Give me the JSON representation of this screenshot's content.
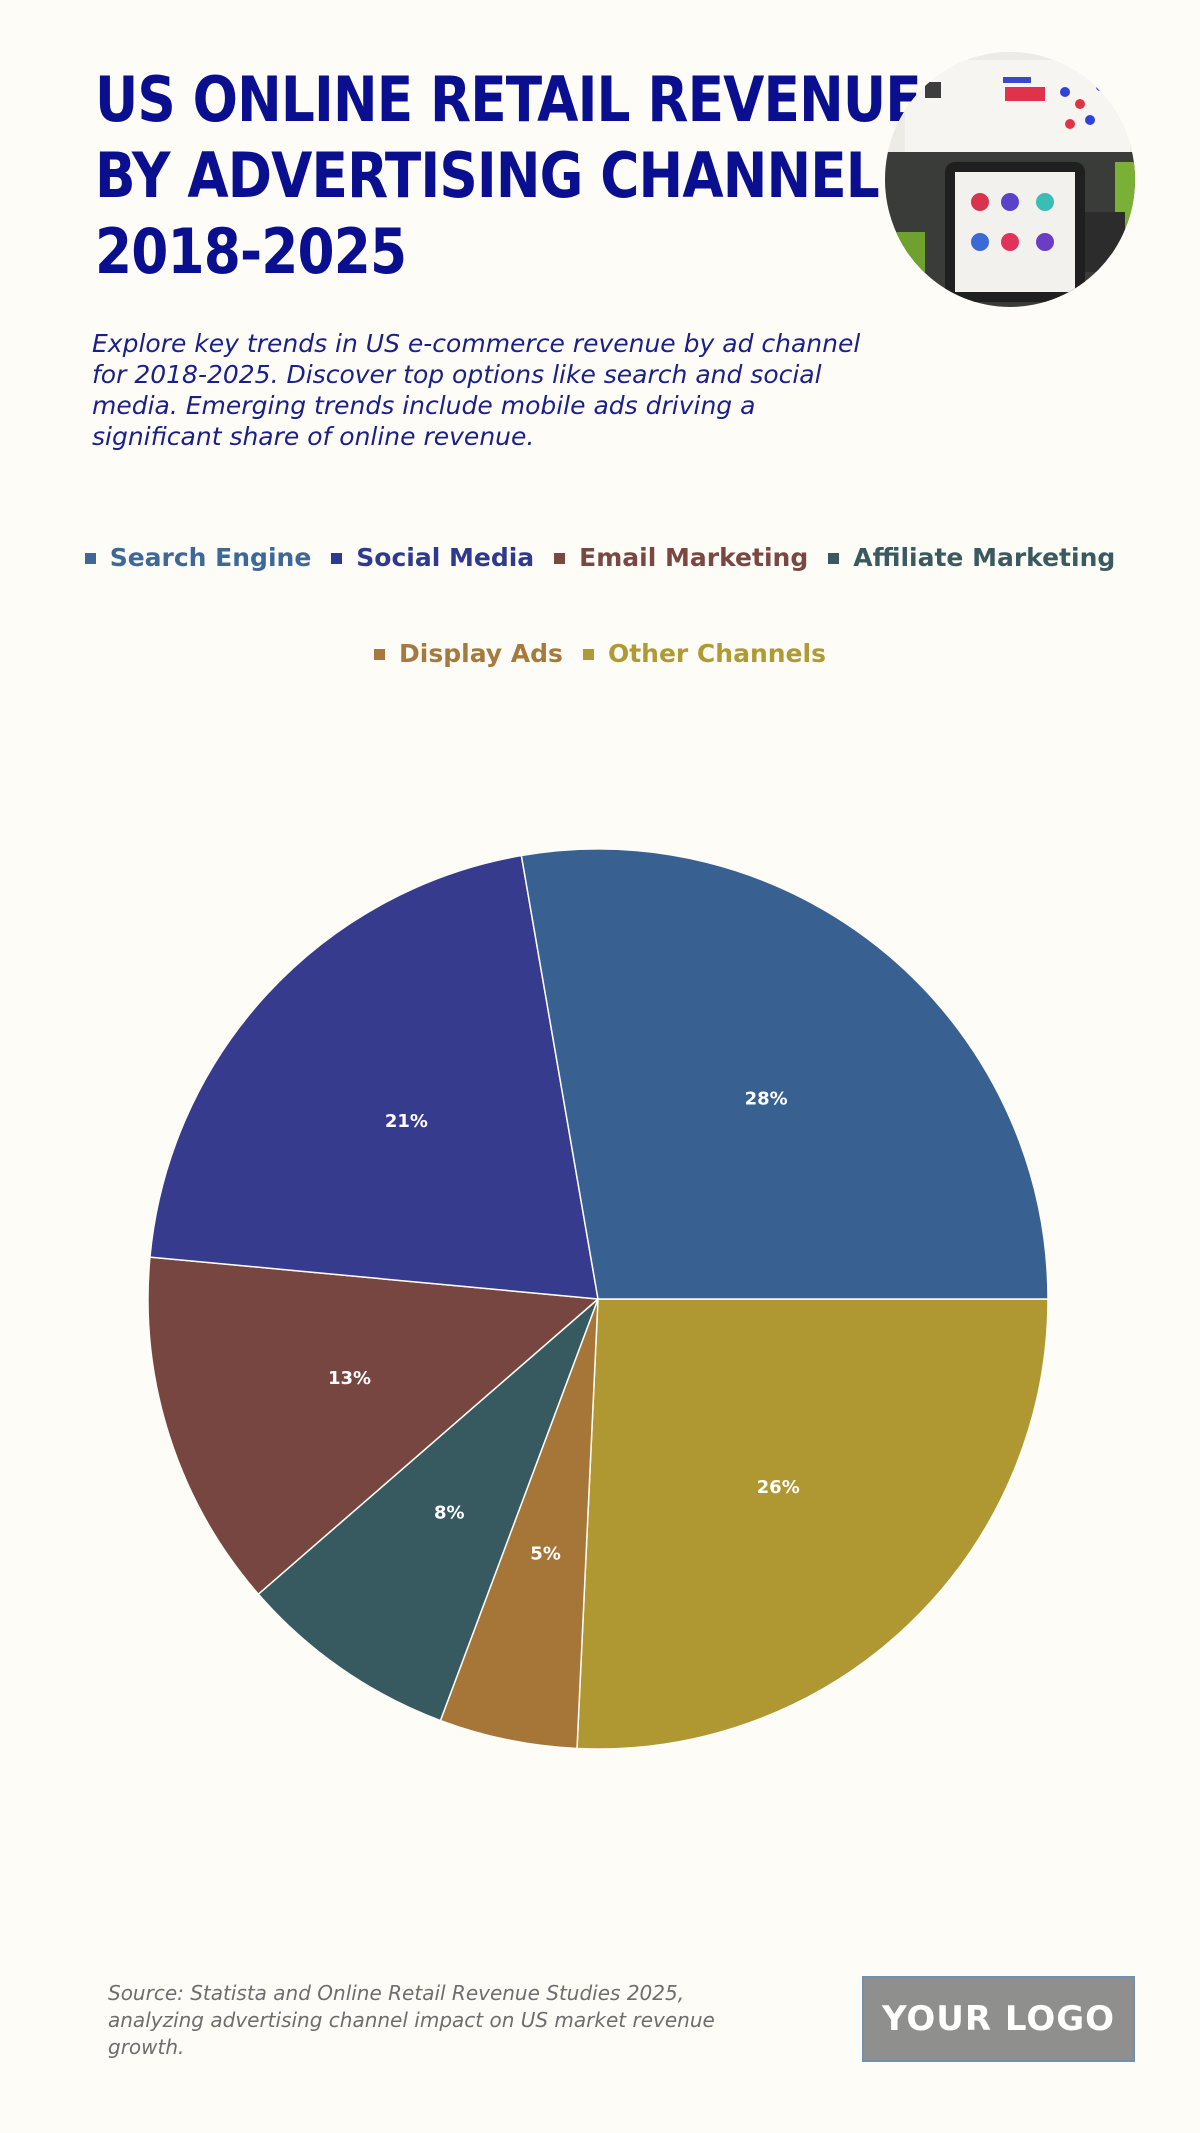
{
  "header": {
    "title_lines": [
      "US ONLINE RETAIL REVENUE",
      "BY ADVERTISING CHANNEL",
      "2018-2025"
    ],
    "subtitle": "Explore key trends in US e-commerce revenue by ad channel for 2018-2025. Discover top options like search and social media. Emerging trends include mobile ads driving a significant share of online revenue."
  },
  "chart_data": {
    "type": "pie",
    "legend_position": "top",
    "slices": [
      {
        "name": "Search Engine",
        "value": 28,
        "label": "28%",
        "color": "#386192"
      },
      {
        "name": "Social Media",
        "value": 21,
        "label": "21%",
        "color": "#363b8e"
      },
      {
        "name": "Email Marketing",
        "value": 13,
        "label": "13%",
        "color": "#784641"
      },
      {
        "name": "Affiliate Marketing",
        "value": 8,
        "label": "8%",
        "color": "#375a60"
      },
      {
        "name": "Display Ads",
        "value": 5,
        "label": "5%",
        "color": "#a67638"
      },
      {
        "name": "Other Channels",
        "value": 26,
        "label": "26%",
        "color": "#af9731"
      }
    ],
    "legend_colors": {
      "Search Engine": "#3e6897",
      "Social Media": "#2f3a8f",
      "Email Marketing": "#7a4743",
      "Affiliate Marketing": "#3a5a60",
      "Display Ads": "#a67a3e",
      "Other Channels": "#b09a35"
    }
  },
  "footer": {
    "source": "Source: Statista and Online Retail Revenue Studies 2025, analyzing advertising channel impact on US market revenue growth.",
    "logo_text": "YOUR LOGO"
  }
}
